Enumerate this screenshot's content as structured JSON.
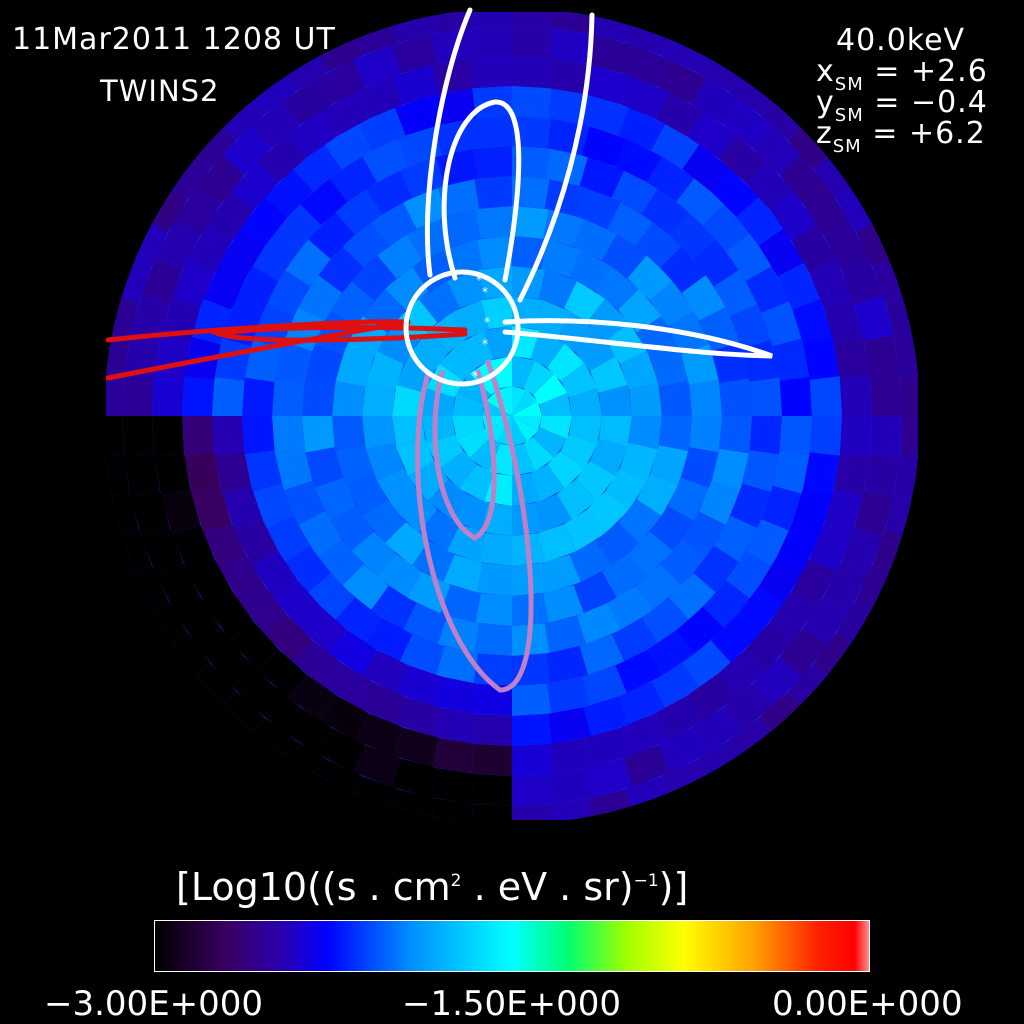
{
  "header": {
    "datetime": "11Mar2011 1208 UT",
    "spacecraft": "TWINS2",
    "energy": "40.0keV",
    "x_label": "x",
    "x_sub": "SM",
    "x_value": "= +2.6",
    "y_label": "y",
    "y_sub": "SM",
    "y_value": "= −0.4",
    "z_label": "z",
    "z_sub": "SM",
    "z_value": "= +6.2"
  },
  "colorbar": {
    "title_pre": "[Log10((s . cm",
    "title_sup1": "2",
    "title_mid": " . eV . sr)",
    "title_sup2": "−1",
    "title_post": ")]",
    "min_label": "−3.00E+000",
    "mid_label": "−1.50E+000",
    "max_label": "0.00E+000",
    "range": [
      -3.0,
      0.0
    ]
  },
  "chart_data": {
    "type": "heatmap",
    "title": "11Mar2011 1208 UT",
    "projection": "polar fisheye image",
    "value_range": [
      -3.0,
      0.0
    ],
    "colormap": [
      "#000000",
      "#3a0060",
      "#0000ff",
      "#00ffff",
      "#a0ff00",
      "#ffff00",
      "#ff0000"
    ],
    "field_lines": [
      {
        "color": "#ffffff",
        "direction": "north"
      },
      {
        "color": "#ffffff",
        "direction": "east"
      },
      {
        "color": "#e00000",
        "direction": "west"
      },
      {
        "color": "#c080c8",
        "direction": "south"
      }
    ],
    "earth_color": "#ffffff",
    "mask_color": "#000000"
  }
}
